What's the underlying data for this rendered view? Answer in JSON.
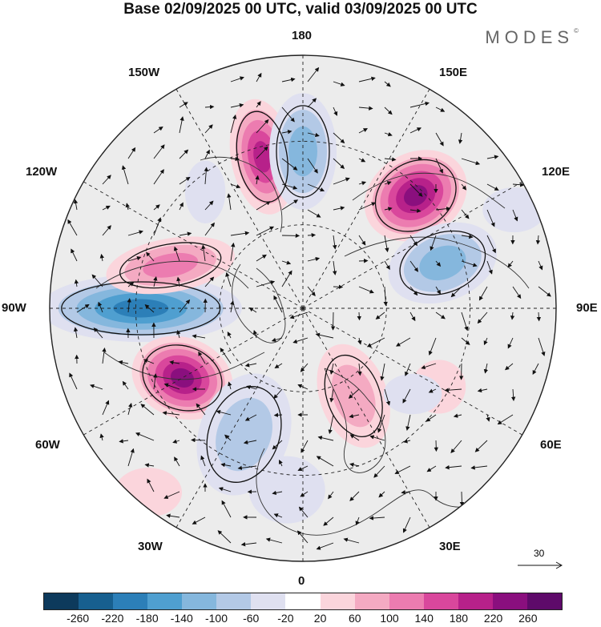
{
  "header": {
    "title": "Base 02/09/2025 00 UTC, valid 03/09/2025 00 UTC",
    "brand": "MODES",
    "brand_mark": "©"
  },
  "map": {
    "projection": "north-polar-stereographic",
    "longitude_labels": {
      "lon_180": "180",
      "lon_150e": "150E",
      "lon_120e": "120E",
      "lon_90e": "90E",
      "lon_60e": "60E",
      "lon_30e": "30E",
      "lon_0": "0",
      "lon_30w": "30W",
      "lon_60w": "60W",
      "lon_90w": "90W",
      "lon_120w": "120W",
      "lon_150w": "150W"
    },
    "wind_reference_vector": "30"
  },
  "colorbar": {
    "ticks": [
      "-260",
      "-220",
      "-180",
      "-140",
      "-100",
      "-60",
      "-20",
      "20",
      "60",
      "100",
      "140",
      "180",
      "220",
      "260"
    ],
    "colors": [
      "#0d3a5c",
      "#175f8f",
      "#2c7fb8",
      "#4f9fd0",
      "#85b7dd",
      "#b3c9e6",
      "#dfe0f0",
      "#ffffff",
      "#fbd5dc",
      "#f4aac2",
      "#ec7cb0",
      "#d9479c",
      "#b7218a",
      "#8a0f7e",
      "#5e0a6a"
    ]
  },
  "anomalies": [
    {
      "name": "low-atlantic-west",
      "lon_deg": -90,
      "colat": 0.64,
      "rx": 90,
      "ry": 30,
      "rot": 0,
      "value": -230
    },
    {
      "name": "high-north-america",
      "lon_deg": -60,
      "colat": 0.55,
      "rx": 46,
      "ry": 36,
      "rot": 20,
      "value": 250
    },
    {
      "name": "high-canada-west",
      "lon_deg": -108,
      "colat": 0.55,
      "rx": 58,
      "ry": 24,
      "rot": -10,
      "value": 130
    },
    {
      "name": "high-alaska",
      "lon_deg": -165,
      "colat": 0.62,
      "rx": 28,
      "ry": 52,
      "rot": -10,
      "value": 200
    },
    {
      "name": "low-bering",
      "lon_deg": 180,
      "colat": 0.62,
      "rx": 30,
      "ry": 52,
      "rot": 0,
      "value": -140
    },
    {
      "name": "low-pacific-east",
      "lon_deg": -140,
      "colat": 0.6,
      "rx": 18,
      "ry": 28,
      "rot": 0,
      "value": -70
    },
    {
      "name": "high-siberia-east",
      "lon_deg": 135,
      "colat": 0.63,
      "rx": 48,
      "ry": 38,
      "rot": -30,
      "value": 270
    },
    {
      "name": "low-siberia",
      "lon_deg": 108,
      "colat": 0.58,
      "rx": 50,
      "ry": 34,
      "rot": -20,
      "value": -130
    },
    {
      "name": "low-far-east",
      "lon_deg": 115,
      "colat": 0.92,
      "rx": 28,
      "ry": 20,
      "rot": 0,
      "value": -70
    },
    {
      "name": "high-scandinavia-east",
      "lon_deg": 30,
      "colat": 0.4,
      "rx": 30,
      "ry": 48,
      "rot": -20,
      "value": 100
    },
    {
      "name": "high-central-asia",
      "lon_deg": 60,
      "colat": 0.62,
      "rx": 24,
      "ry": 24,
      "rot": 0,
      "value": 60
    },
    {
      "name": "low-west-asia",
      "lon_deg": 52,
      "colat": 0.55,
      "rx": 26,
      "ry": 18,
      "rot": 0,
      "value": -60
    },
    {
      "name": "low-north-atlantic",
      "lon_deg": -25,
      "colat": 0.55,
      "rx": 40,
      "ry": 56,
      "rot": 20,
      "value": -110
    },
    {
      "name": "low-greenland-sea",
      "lon_deg": -5,
      "colat": 0.72,
      "rx": 34,
      "ry": 30,
      "rot": 0,
      "value": -70
    },
    {
      "name": "high-east-atlantic",
      "lon_deg": -40,
      "colat": 0.95,
      "rx": 30,
      "ry": 22,
      "rot": 0,
      "value": 60
    }
  ]
}
